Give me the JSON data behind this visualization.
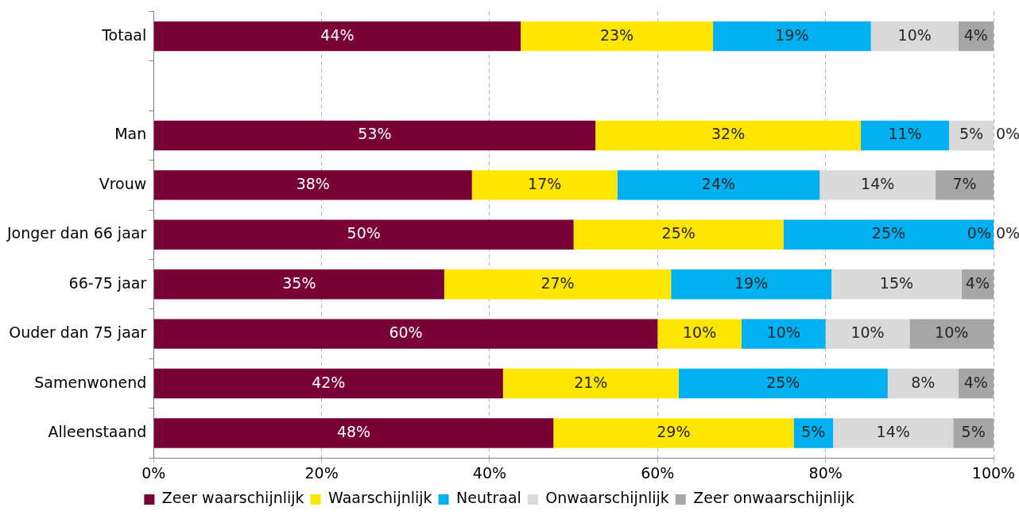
{
  "chart_data": {
    "type": "bar",
    "orientation": "horizontal",
    "stacked": true,
    "categories": [
      "Totaal",
      null,
      "Man",
      "Vrouw",
      "Jonger dan 66 jaar",
      "66-75 jaar",
      "Ouder dan 75 jaar",
      "Samenwonend",
      "Alleenstaand"
    ],
    "series": [
      {
        "name": "Zeer waarschijnlijk",
        "color": "#7a0038",
        "values": [
          43.7,
          null,
          52.6,
          37.9,
          50,
          34.6,
          60,
          41.6,
          47.6
        ],
        "value_labels": [
          "44%",
          null,
          "53%",
          "38%",
          "50%",
          "35%",
          "60%",
          "42%",
          "48%"
        ]
      },
      {
        "name": "Waarschijnlijk",
        "color": "#ffe600",
        "values": [
          22.9,
          null,
          31.6,
          17.3,
          25,
          27,
          10,
          20.9,
          28.6
        ],
        "value_labels": [
          "23%",
          null,
          "32%",
          "17%",
          "25%",
          "27%",
          "10%",
          "21%",
          "29%"
        ]
      },
      {
        "name": "Neutraal",
        "color": "#00b0f0",
        "values": [
          18.8,
          null,
          10.5,
          24.1,
          25,
          19.1,
          10,
          24.9,
          4.7
        ],
        "value_labels": [
          "19%",
          null,
          "11%",
          "24%",
          "25%",
          "19%",
          "10%",
          "25%",
          "5%"
        ]
      },
      {
        "name": "Onwaarschijnlijk",
        "color": "#d9d9d9",
        "values": [
          10.4,
          null,
          5.3,
          13.8,
          0,
          15.5,
          10,
          8.4,
          14.3
        ],
        "value_labels": [
          "10%",
          null,
          "5%",
          "14%",
          "0%",
          "15%",
          "10%",
          "8%",
          "14%"
        ]
      },
      {
        "name": "Zeer onwaarschijnlijk",
        "color": "#a6a6a6",
        "values": [
          4.2,
          null,
          0,
          6.9,
          0,
          3.8,
          10,
          4.2,
          4.8
        ],
        "value_labels": [
          "4%",
          null,
          "0%",
          "7%",
          "0%",
          "4%",
          "10%",
          "4%",
          "5%"
        ]
      }
    ],
    "xlim": [
      0,
      100
    ],
    "xticks": [
      {
        "value": 0,
        "label": "0%"
      },
      {
        "value": 20,
        "label": "20%"
      },
      {
        "value": 40,
        "label": "40%"
      },
      {
        "value": 60,
        "label": "60%"
      },
      {
        "value": 80,
        "label": "80%"
      },
      {
        "value": 100,
        "label": "100%"
      }
    ],
    "grid": "x",
    "legend": "bottom"
  }
}
